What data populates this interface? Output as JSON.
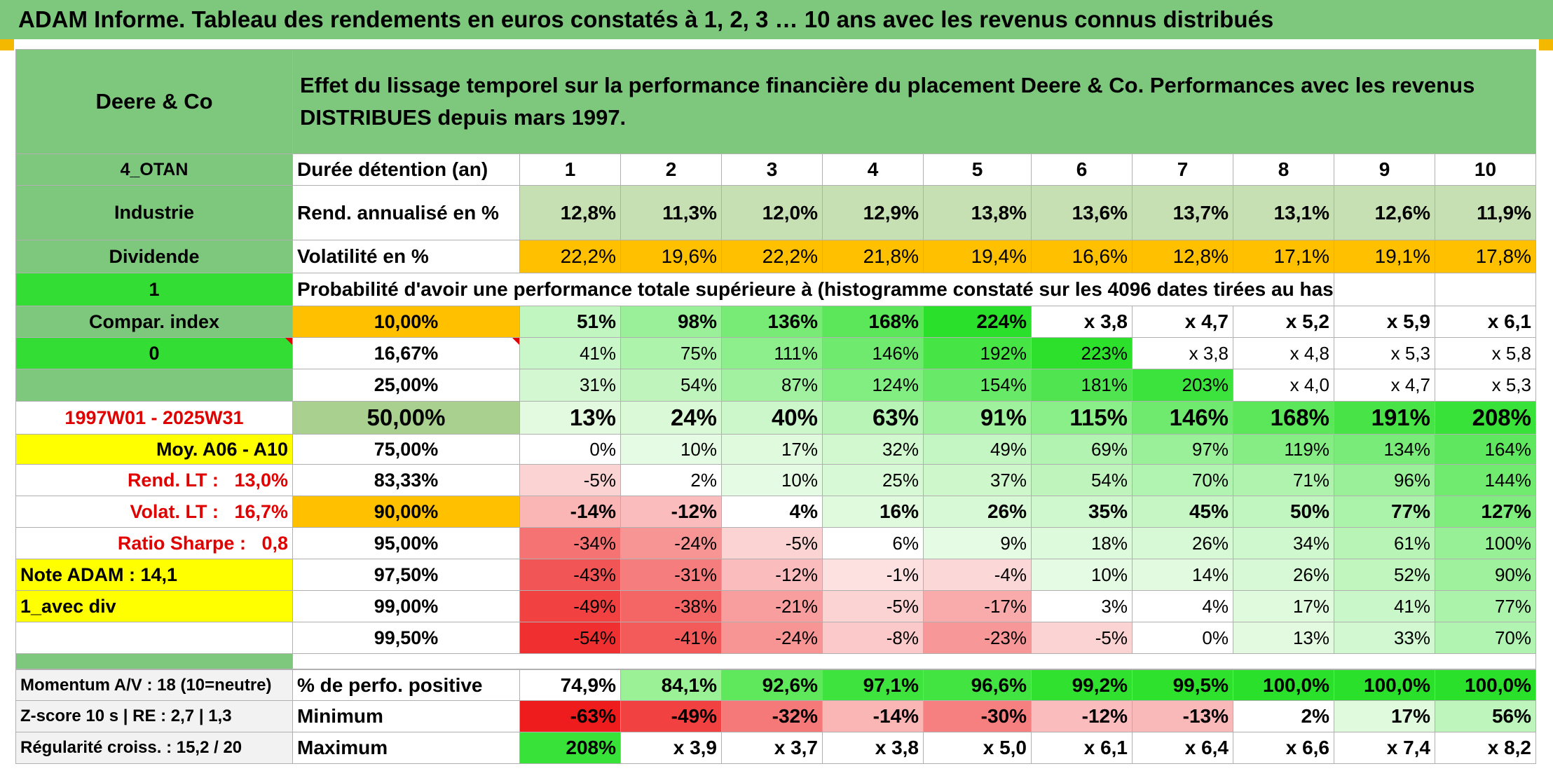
{
  "title": "ADAM Informe. Tableau des rendements en euros constatés à 1, 2, 3 … 10 ans avec les revenus connus distribués",
  "header": {
    "company": "Deere & Co",
    "description": "Effet du lissage temporel sur la performance financière du placement Deere & Co. Performances avec les revenus DISTRIBUES depuis mars 1997."
  },
  "left_panel": {
    "code": "4_OTAN",
    "sector": "Industrie",
    "type": "Dividende",
    "flag1": "1",
    "compar_index": "Compar. index",
    "flag2": "0",
    "period": "1997W01 - 2025W31",
    "moy": "Moy. A06 - A10",
    "rend_lt_label": "Rend. LT :",
    "rend_lt_value": "13,0%",
    "volat_lt_label": "Volat. LT :",
    "volat_lt_value": "16,7%",
    "sharpe_label": "Ratio Sharpe :",
    "sharpe_value": "0,8",
    "note": "Note ADAM : 14,1",
    "mode": "1_avec div"
  },
  "table": {
    "duree_label": "Durée détention (an)",
    "years": [
      "1",
      "2",
      "3",
      "4",
      "5",
      "6",
      "7",
      "8",
      "9",
      "10"
    ],
    "rend_label": "Rend. annualisé en %",
    "rend": [
      "12,8%",
      "11,3%",
      "12,0%",
      "12,9%",
      "13,8%",
      "13,6%",
      "13,7%",
      "13,1%",
      "12,6%",
      "11,9%"
    ],
    "vol_label": "Volatilité en %",
    "vol": [
      "22,2%",
      "19,6%",
      "22,2%",
      "21,8%",
      "19,4%",
      "16,6%",
      "12,8%",
      "17,1%",
      "19,1%",
      "17,8%"
    ],
    "proba_label": "Probabilité d'avoir une performance totale supérieure à (histogramme constaté sur les 4096 dates tirées au hasard)",
    "quantiles": [
      {
        "p": "10,00%",
        "v": [
          "51%",
          "98%",
          "136%",
          "168%",
          "224%",
          "x 3,8",
          "x 4,7",
          "x 5,2",
          "x 5,9",
          "x 6,1"
        ]
      },
      {
        "p": "16,67%",
        "v": [
          "41%",
          "75%",
          "111%",
          "146%",
          "192%",
          "223%",
          "x 3,8",
          "x 4,8",
          "x 5,3",
          "x 5,8"
        ]
      },
      {
        "p": "25,00%",
        "v": [
          "31%",
          "54%",
          "87%",
          "124%",
          "154%",
          "181%",
          "203%",
          "x 4,0",
          "x 4,7",
          "x 5,3"
        ]
      },
      {
        "p": "50,00%",
        "v": [
          "13%",
          "24%",
          "40%",
          "63%",
          "91%",
          "115%",
          "146%",
          "168%",
          "191%",
          "208%"
        ]
      },
      {
        "p": "75,00%",
        "v": [
          "0%",
          "10%",
          "17%",
          "32%",
          "49%",
          "69%",
          "97%",
          "119%",
          "134%",
          "164%"
        ]
      },
      {
        "p": "83,33%",
        "v": [
          "-5%",
          "2%",
          "10%",
          "25%",
          "37%",
          "54%",
          "70%",
          "71%",
          "96%",
          "144%"
        ]
      },
      {
        "p": "90,00%",
        "v": [
          "-14%",
          "-12%",
          "4%",
          "16%",
          "26%",
          "35%",
          "45%",
          "50%",
          "77%",
          "127%"
        ]
      },
      {
        "p": "95,00%",
        "v": [
          "-34%",
          "-24%",
          "-5%",
          "6%",
          "9%",
          "18%",
          "26%",
          "34%",
          "61%",
          "100%"
        ]
      },
      {
        "p": "97,50%",
        "v": [
          "-43%",
          "-31%",
          "-12%",
          "-1%",
          "-4%",
          "10%",
          "14%",
          "26%",
          "52%",
          "90%"
        ]
      },
      {
        "p": "99,00%",
        "v": [
          "-49%",
          "-38%",
          "-21%",
          "-5%",
          "-17%",
          "3%",
          "4%",
          "17%",
          "41%",
          "77%"
        ]
      },
      {
        "p": "99,50%",
        "v": [
          "-54%",
          "-41%",
          "-24%",
          "-8%",
          "-23%",
          "-5%",
          "0%",
          "13%",
          "33%",
          "70%"
        ]
      }
    ],
    "footer": [
      {
        "left": "Momentum A/V : 18 (10=neutre)",
        "label": "% de perfo. positive",
        "v": [
          "74,9%",
          "84,1%",
          "92,6%",
          "97,1%",
          "96,6%",
          "99,2%",
          "99,5%",
          "100,0%",
          "100,0%",
          "100,0%"
        ]
      },
      {
        "left": "Z-score 10 s | RE : 2,7 | 1,3",
        "label": "Minimum",
        "v": [
          "-63%",
          "-49%",
          "-32%",
          "-14%",
          "-30%",
          "-12%",
          "-13%",
          "2%",
          "17%",
          "56%"
        ]
      },
      {
        "left": "Régularité croiss. : 15,2 / 20",
        "label": "Maximum",
        "v": [
          "208%",
          "x 3,9",
          "x 3,7",
          "x 3,8",
          "x 5,0",
          "x 6,1",
          "x 6,4",
          "x 6,6",
          "x 7,4",
          "x 8,2"
        ]
      }
    ]
  },
  "colors": {
    "header_green": "#7ec87e",
    "bright_green": "#33dd33",
    "yellow": "#ffff00",
    "orange": "#ffc000",
    "rend_green": "#c6e0b4",
    "accent_red": "#e00000"
  }
}
